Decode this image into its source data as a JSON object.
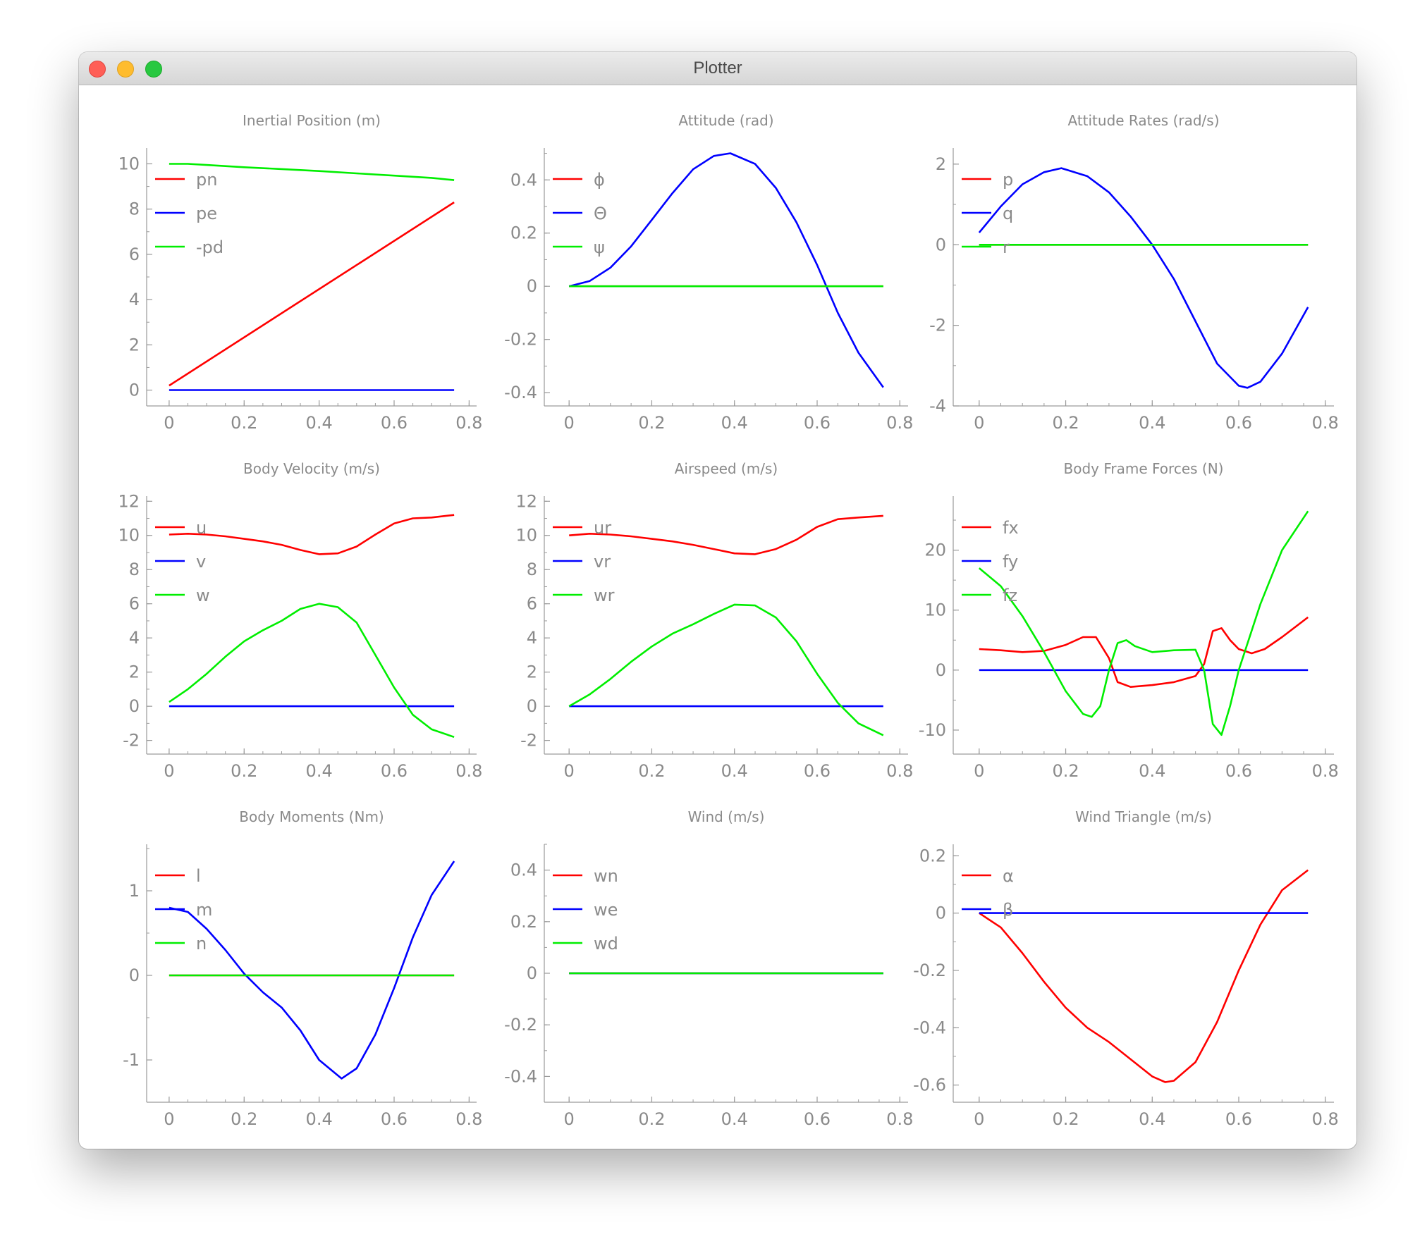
{
  "window": {
    "title": "Plotter"
  },
  "colors": {
    "red": "#ff0000",
    "blue": "#0000ff",
    "green": "#00ee00",
    "text": "#8a8a8a",
    "axis": "#9a9a9a"
  },
  "chart_data": [
    {
      "type": "line",
      "title": "Inertial Position (m)",
      "xlim": [
        -0.06,
        0.82
      ],
      "ylim": [
        -0.7,
        10.7
      ],
      "xticks": [
        0,
        0.2,
        0.4,
        0.6,
        0.8
      ],
      "xtick_labels": [
        "0",
        "0.2",
        "0.4",
        "0.6",
        "0.8"
      ],
      "yticks": [
        0,
        2,
        4,
        6,
        8,
        10
      ],
      "ytick_labels": [
        "0",
        "2",
        "4",
        "6",
        "8",
        "10"
      ],
      "legend": "top-left",
      "series": [
        {
          "name": "pn",
          "color": "red",
          "x": [
            0,
            0.76
          ],
          "y": [
            0.2,
            8.3
          ]
        },
        {
          "name": "pe",
          "color": "blue",
          "x": [
            0,
            0.76
          ],
          "y": [
            0,
            0
          ]
        },
        {
          "name": "-pd",
          "color": "green",
          "x": [
            0,
            0.05,
            0.1,
            0.2,
            0.3,
            0.4,
            0.5,
            0.6,
            0.7,
            0.76
          ],
          "y": [
            10,
            10,
            9.95,
            9.85,
            9.77,
            9.68,
            9.58,
            9.48,
            9.38,
            9.28
          ]
        }
      ]
    },
    {
      "type": "line",
      "title": "Attitude (rad)",
      "xlim": [
        -0.06,
        0.82
      ],
      "ylim": [
        -0.45,
        0.52
      ],
      "xticks": [
        0,
        0.2,
        0.4,
        0.6,
        0.8
      ],
      "xtick_labels": [
        "0",
        "0.2",
        "0.4",
        "0.6",
        "0.8"
      ],
      "yticks": [
        -0.4,
        -0.2,
        0,
        0.2,
        0.4
      ],
      "ytick_labels": [
        "-0.4",
        "-0.2",
        "0",
        "0.2",
        "0.4"
      ],
      "legend": "top-left",
      "series": [
        {
          "name": "ϕ",
          "color": "red",
          "x": [
            0,
            0.76
          ],
          "y": [
            0,
            0
          ]
        },
        {
          "name": "Θ",
          "color": "blue",
          "x": [
            0,
            0.05,
            0.1,
            0.15,
            0.2,
            0.25,
            0.3,
            0.35,
            0.39,
            0.45,
            0.5,
            0.55,
            0.6,
            0.65,
            0.7,
            0.76
          ],
          "y": [
            0,
            0.02,
            0.07,
            0.15,
            0.25,
            0.35,
            0.44,
            0.49,
            0.5,
            0.46,
            0.37,
            0.24,
            0.08,
            -0.1,
            -0.25,
            -0.38
          ]
        },
        {
          "name": "ψ",
          "color": "green",
          "x": [
            0,
            0.76
          ],
          "y": [
            0,
            0
          ]
        }
      ]
    },
    {
      "type": "line",
      "title": "Attitude Rates (rad/s)",
      "xlim": [
        -0.06,
        0.82
      ],
      "ylim": [
        -4.0,
        2.4
      ],
      "xticks": [
        0,
        0.2,
        0.4,
        0.6,
        0.8
      ],
      "xtick_labels": [
        "0",
        "0.2",
        "0.4",
        "0.6",
        "0.8"
      ],
      "yticks": [
        -4,
        -2,
        0,
        2
      ],
      "ytick_labels": [
        "-4",
        "-2",
        "0",
        "2"
      ],
      "legend": "top-left",
      "series": [
        {
          "name": "p",
          "color": "red",
          "x": [
            0,
            0.76
          ],
          "y": [
            0,
            0
          ]
        },
        {
          "name": "q",
          "color": "blue",
          "x": [
            0,
            0.05,
            0.1,
            0.15,
            0.19,
            0.25,
            0.3,
            0.35,
            0.4,
            0.45,
            0.5,
            0.55,
            0.6,
            0.62,
            0.65,
            0.7,
            0.76
          ],
          "y": [
            0.3,
            0.95,
            1.5,
            1.8,
            1.9,
            1.7,
            1.3,
            0.7,
            0,
            -0.85,
            -1.9,
            -2.95,
            -3.5,
            -3.55,
            -3.4,
            -2.7,
            -1.55
          ]
        },
        {
          "name": "r",
          "color": "green",
          "x": [
            0,
            0.76
          ],
          "y": [
            0,
            0
          ]
        }
      ]
    },
    {
      "type": "line",
      "title": "Body Velocity (m/s)",
      "xlim": [
        -0.06,
        0.82
      ],
      "ylim": [
        -2.8,
        12.3
      ],
      "xticks": [
        0,
        0.2,
        0.4,
        0.6,
        0.8
      ],
      "xtick_labels": [
        "0",
        "0.2",
        "0.4",
        "0.6",
        "0.8"
      ],
      "yticks": [
        -2,
        0,
        2,
        4,
        6,
        8,
        10,
        12
      ],
      "ytick_labels": [
        "-2",
        "0",
        "2",
        "4",
        "6",
        "8",
        "10",
        "12"
      ],
      "legend": "top-left",
      "series": [
        {
          "name": "u",
          "color": "red",
          "x": [
            0,
            0.05,
            0.1,
            0.15,
            0.2,
            0.25,
            0.3,
            0.35,
            0.4,
            0.45,
            0.5,
            0.55,
            0.6,
            0.65,
            0.7,
            0.76
          ],
          "y": [
            10.05,
            10.1,
            10.05,
            9.95,
            9.8,
            9.65,
            9.45,
            9.15,
            8.9,
            8.95,
            9.35,
            10.05,
            10.7,
            11.0,
            11.05,
            11.2
          ]
        },
        {
          "name": "v",
          "color": "blue",
          "x": [
            0,
            0.76
          ],
          "y": [
            0,
            0
          ]
        },
        {
          "name": "w",
          "color": "green",
          "x": [
            0,
            0.05,
            0.1,
            0.15,
            0.2,
            0.25,
            0.3,
            0.35,
            0.4,
            0.45,
            0.5,
            0.55,
            0.6,
            0.65,
            0.7,
            0.76
          ],
          "y": [
            0.25,
            1.0,
            1.9,
            2.9,
            3.8,
            4.45,
            5.0,
            5.7,
            6.0,
            5.8,
            4.9,
            3.0,
            1.1,
            -0.5,
            -1.35,
            -1.8
          ]
        }
      ]
    },
    {
      "type": "line",
      "title": "Airspeed (m/s)",
      "xlim": [
        -0.06,
        0.82
      ],
      "ylim": [
        -2.8,
        12.3
      ],
      "xticks": [
        0,
        0.2,
        0.4,
        0.6,
        0.8
      ],
      "xtick_labels": [
        "0",
        "0.2",
        "0.4",
        "0.6",
        "0.8"
      ],
      "yticks": [
        -2,
        0,
        2,
        4,
        6,
        8,
        10,
        12
      ],
      "ytick_labels": [
        "-2",
        "0",
        "2",
        "4",
        "6",
        "8",
        "10",
        "12"
      ],
      "legend": "top-left",
      "series": [
        {
          "name": "ur",
          "color": "red",
          "x": [
            0,
            0.05,
            0.1,
            0.15,
            0.2,
            0.25,
            0.3,
            0.35,
            0.4,
            0.45,
            0.5,
            0.55,
            0.6,
            0.65,
            0.7,
            0.76
          ],
          "y": [
            10.0,
            10.1,
            10.05,
            9.95,
            9.8,
            9.65,
            9.45,
            9.2,
            8.95,
            8.9,
            9.2,
            9.75,
            10.5,
            10.95,
            11.05,
            11.15
          ]
        },
        {
          "name": "vr",
          "color": "blue",
          "x": [
            0,
            0.76
          ],
          "y": [
            0,
            0
          ]
        },
        {
          "name": "wr",
          "color": "green",
          "x": [
            0,
            0.05,
            0.1,
            0.15,
            0.2,
            0.25,
            0.3,
            0.35,
            0.4,
            0.45,
            0.5,
            0.55,
            0.6,
            0.65,
            0.7,
            0.76
          ],
          "y": [
            0,
            0.7,
            1.6,
            2.6,
            3.5,
            4.25,
            4.8,
            5.4,
            5.95,
            5.9,
            5.2,
            3.8,
            1.9,
            0.2,
            -1.0,
            -1.7
          ]
        }
      ]
    },
    {
      "type": "line",
      "title": "Body Frame Forces (N)",
      "xlim": [
        -0.06,
        0.82
      ],
      "ylim": [
        -14,
        29
      ],
      "xticks": [
        0,
        0.2,
        0.4,
        0.6,
        0.8
      ],
      "xtick_labels": [
        "0",
        "0.2",
        "0.4",
        "0.6",
        "0.8"
      ],
      "yticks": [
        -10,
        0,
        10,
        20
      ],
      "ytick_labels": [
        "-10",
        "0",
        "10",
        "20"
      ],
      "legend": "top-left",
      "series": [
        {
          "name": "fx",
          "color": "red",
          "x": [
            0,
            0.05,
            0.1,
            0.15,
            0.2,
            0.24,
            0.27,
            0.3,
            0.32,
            0.35,
            0.4,
            0.45,
            0.5,
            0.52,
            0.54,
            0.56,
            0.58,
            0.6,
            0.63,
            0.66,
            0.7,
            0.76
          ],
          "y": [
            3.5,
            3.3,
            3.0,
            3.2,
            4.2,
            5.5,
            5.5,
            2.0,
            -2.0,
            -2.8,
            -2.5,
            -2.0,
            -1.0,
            1.0,
            6.5,
            7.0,
            5.0,
            3.5,
            2.8,
            3.5,
            5.5,
            8.8
          ]
        },
        {
          "name": "fy",
          "color": "blue",
          "x": [
            0,
            0.76
          ],
          "y": [
            0,
            0
          ]
        },
        {
          "name": "fz",
          "color": "green",
          "x": [
            0,
            0.05,
            0.1,
            0.15,
            0.2,
            0.24,
            0.26,
            0.28,
            0.3,
            0.32,
            0.34,
            0.36,
            0.4,
            0.45,
            0.5,
            0.52,
            0.54,
            0.56,
            0.58,
            0.6,
            0.65,
            0.7,
            0.76
          ],
          "y": [
            17,
            14,
            9,
            3,
            -3.5,
            -7.3,
            -7.8,
            -6,
            0,
            4.5,
            5,
            4,
            3,
            3.3,
            3.4,
            0,
            -9,
            -10.8,
            -6,
            0,
            11,
            20,
            26.5
          ]
        }
      ]
    },
    {
      "type": "line",
      "title": "Body Moments (Nm)",
      "xlim": [
        -0.06,
        0.82
      ],
      "ylim": [
        -1.5,
        1.55
      ],
      "xticks": [
        0,
        0.2,
        0.4,
        0.6,
        0.8
      ],
      "xtick_labels": [
        "0",
        "0.2",
        "0.4",
        "0.6",
        "0.8"
      ],
      "yticks": [
        -1,
        0,
        1
      ],
      "ytick_labels": [
        "-1",
        "0",
        "1"
      ],
      "legend": "top-left",
      "series": [
        {
          "name": "l",
          "color": "red",
          "x": [
            0,
            0.76
          ],
          "y": [
            0,
            0
          ]
        },
        {
          "name": "m",
          "color": "blue",
          "x": [
            0,
            0.05,
            0.1,
            0.15,
            0.2,
            0.25,
            0.3,
            0.35,
            0.4,
            0.46,
            0.5,
            0.55,
            0.6,
            0.65,
            0.7,
            0.76
          ],
          "y": [
            0.8,
            0.75,
            0.55,
            0.3,
            0.02,
            -0.2,
            -0.38,
            -0.65,
            -1.0,
            -1.22,
            -1.1,
            -0.7,
            -0.15,
            0.45,
            0.95,
            1.35
          ]
        },
        {
          "name": "n",
          "color": "green",
          "x": [
            0,
            0.76
          ],
          "y": [
            0,
            0
          ]
        }
      ]
    },
    {
      "type": "line",
      "title": "Wind (m/s)",
      "xlim": [
        -0.06,
        0.82
      ],
      "ylim": [
        -0.5,
        0.5
      ],
      "xticks": [
        0,
        0.2,
        0.4,
        0.6,
        0.8
      ],
      "xtick_labels": [
        "0",
        "0.2",
        "0.4",
        "0.6",
        "0.8"
      ],
      "yticks": [
        -0.4,
        -0.2,
        0,
        0.2,
        0.4
      ],
      "ytick_labels": [
        "-0.4",
        "-0.2",
        "0",
        "0.2",
        "0.4"
      ],
      "legend": "top-left",
      "series": [
        {
          "name": "wn",
          "color": "red",
          "x": [
            0,
            0.76
          ],
          "y": [
            0,
            0
          ]
        },
        {
          "name": "we",
          "color": "blue",
          "x": [
            0,
            0.76
          ],
          "y": [
            0,
            0
          ]
        },
        {
          "name": "wd",
          "color": "green",
          "x": [
            0,
            0.76
          ],
          "y": [
            0,
            0
          ]
        }
      ]
    },
    {
      "type": "line",
      "title": "Wind Triangle (m/s)",
      "xlim": [
        -0.06,
        0.82
      ],
      "ylim": [
        -0.66,
        0.24
      ],
      "xticks": [
        0,
        0.2,
        0.4,
        0.6,
        0.8
      ],
      "xtick_labels": [
        "0",
        "0.2",
        "0.4",
        "0.6",
        "0.8"
      ],
      "yticks": [
        -0.6,
        -0.4,
        -0.2,
        0,
        0.2
      ],
      "ytick_labels": [
        "-0.6",
        "-0.4",
        "-0.2",
        "0",
        "0.2"
      ],
      "legend": "top-left",
      "series": [
        {
          "name": "α",
          "color": "red",
          "x": [
            0,
            0.05,
            0.1,
            0.15,
            0.2,
            0.25,
            0.3,
            0.35,
            0.4,
            0.43,
            0.45,
            0.5,
            0.55,
            0.6,
            0.65,
            0.7,
            0.76
          ],
          "y": [
            0,
            -0.05,
            -0.14,
            -0.24,
            -0.33,
            -0.4,
            -0.45,
            -0.51,
            -0.57,
            -0.59,
            -0.585,
            -0.52,
            -0.38,
            -0.2,
            -0.04,
            0.08,
            0.15
          ]
        },
        {
          "name": "β",
          "color": "blue",
          "x": [
            0,
            0.76
          ],
          "y": [
            0,
            0
          ]
        }
      ]
    }
  ]
}
